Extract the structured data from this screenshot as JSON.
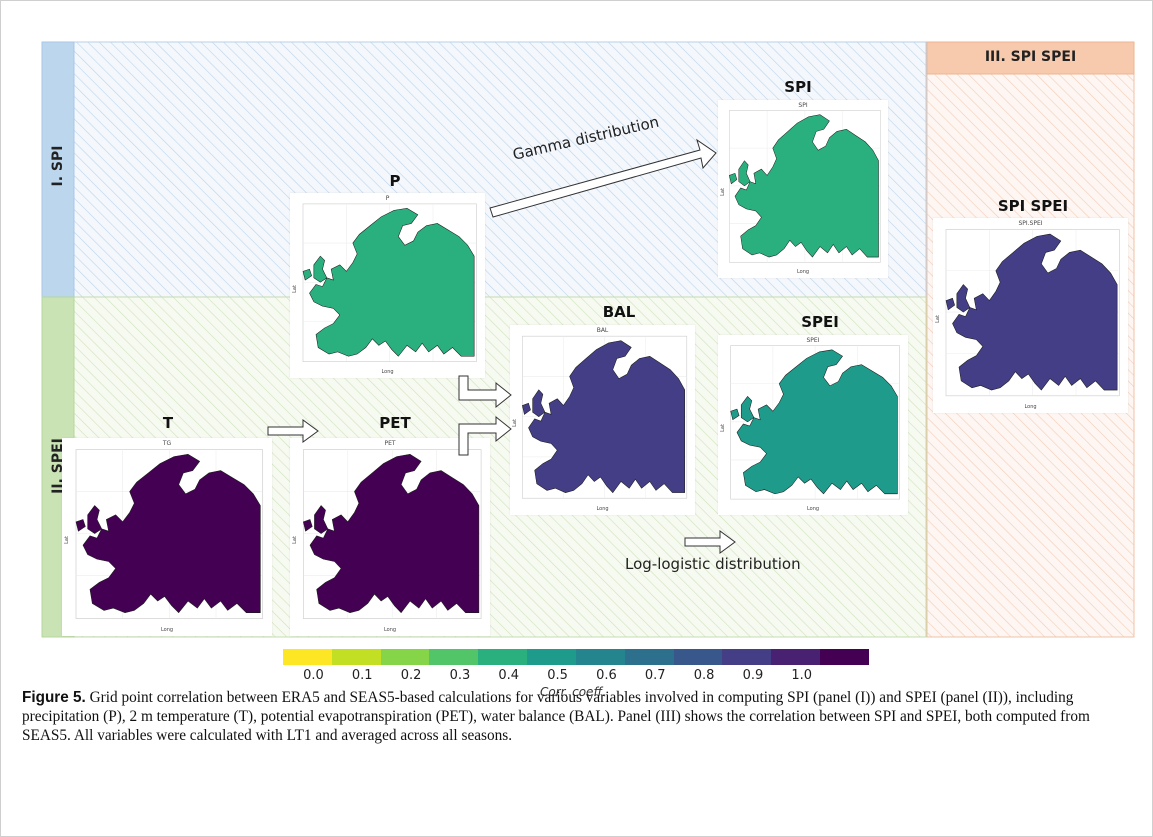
{
  "panels": {
    "spi_label": "I. SPI",
    "spei_label": "II. SPEI",
    "spi_spei_label": "III. SPI SPEI",
    "colors": {
      "spi": "#dbe9f5",
      "spei": "#e3efd6",
      "spispei": "#fbe2d3",
      "spi_header": "#bcd6ee",
      "spei_header": "#c9e3b5",
      "spispei_header": "#f7c9ad"
    }
  },
  "maps": {
    "spi": {
      "title": "SPI",
      "inner": "SPI",
      "value": 0.4
    },
    "p": {
      "title": "P",
      "inner": "P",
      "value": 0.35
    },
    "bal": {
      "title": "BAL",
      "inner": "BAL",
      "value": 0.78
    },
    "spei": {
      "title": "SPEI",
      "inner": "SPEI",
      "value": 0.45
    },
    "t": {
      "title": "T",
      "inner": "TG",
      "value": 0.97
    },
    "pet": {
      "title": "PET",
      "inner": "PET",
      "value": 0.96
    },
    "spispei": {
      "title": "SPI SPEI",
      "inner": "SPI.SPEI",
      "value": 0.85
    },
    "axis_long": "Long",
    "axis_lat": "Lat"
  },
  "annotations": {
    "gamma": "Gamma distribution",
    "loglogistic": "Log-logistic distribution"
  },
  "colorbar": {
    "title": "Corr. coeff.",
    "ticks": [
      "0.0",
      "0.1",
      "0.2",
      "0.3",
      "0.4",
      "0.5",
      "0.6",
      "0.7",
      "0.8",
      "0.9",
      "1.0"
    ],
    "colors": [
      "#fde725",
      "#c2df23",
      "#86d549",
      "#52c569",
      "#2ab07f",
      "#1e9b8a",
      "#25858e",
      "#2d708e",
      "#38588c",
      "#433e85",
      "#482173",
      "#440154"
    ]
  },
  "caption": {
    "label": "Figure 5.",
    "text": "Grid point correlation between ERA5 and SEAS5-based calculations for various variables involved in computing SPI (panel (I)) and SPEI (panel (II)), including precipitation (P), 2 m temperature (T), potential evapotranspiration (PET), water balance (BAL). Panel (III) shows the correlation between SPI and SPEI, both computed from SEAS5. All variables were calculated with LT1 and averaged across all seasons."
  }
}
